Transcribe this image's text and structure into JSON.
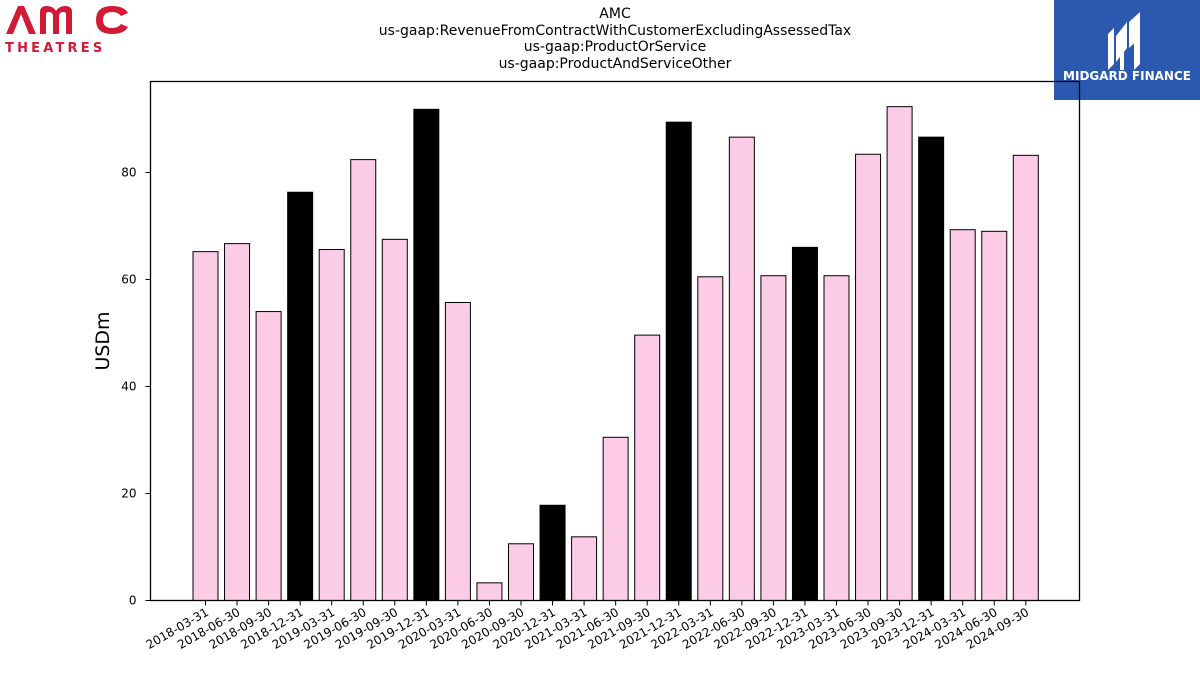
{
  "company_logo": {
    "text_top": "AMC",
    "text_bottom": "THEATRES",
    "color": "#d11a36"
  },
  "publisher_logo": {
    "text": "MIDGARD FINANCE",
    "bg_color": "#2b59b0"
  },
  "chart_data": {
    "type": "bar",
    "title_lines": [
      "AMC",
      "us-gaap:RevenueFromContractWithCustomerExcludingAssessedTax",
      "us-gaap:ProductOrService",
      "us-gaap:ProductAndServiceOther"
    ],
    "ylabel": "USDm",
    "xlabel": "",
    "ylim": [
      0,
      97
    ],
    "yticks": [
      0,
      20,
      40,
      60,
      80
    ],
    "grid": false,
    "colors": {
      "quarter": "#fccce6",
      "year_end": "#000000",
      "edge": "#000000"
    },
    "categories": [
      "2018-03-31",
      "2018-06-30",
      "2018-09-30",
      "2018-12-31",
      "2019-03-31",
      "2019-06-30",
      "2019-09-30",
      "2019-12-31",
      "2020-03-31",
      "2020-06-30",
      "2020-09-30",
      "2020-12-31",
      "2021-03-31",
      "2021-06-30",
      "2021-09-30",
      "2021-12-31",
      "2022-03-31",
      "2022-06-30",
      "2022-09-30",
      "2022-12-31",
      "2023-03-31",
      "2023-06-30",
      "2023-09-30",
      "2023-12-31",
      "2024-03-31",
      "2024-06-30",
      "2024-09-30"
    ],
    "values": [
      65.2,
      66.7,
      54.0,
      76.3,
      65.6,
      82.4,
      67.5,
      91.8,
      55.7,
      3.3,
      10.6,
      17.8,
      11.9,
      30.5,
      49.6,
      89.4,
      60.5,
      86.6,
      60.7,
      66.0,
      60.7,
      83.4,
      92.3,
      86.6,
      69.3,
      69.0,
      83.2
    ],
    "year_end_flags": [
      false,
      false,
      false,
      true,
      false,
      false,
      false,
      true,
      false,
      false,
      false,
      true,
      false,
      false,
      false,
      true,
      false,
      false,
      false,
      true,
      false,
      false,
      false,
      true,
      false,
      false,
      false
    ]
  }
}
